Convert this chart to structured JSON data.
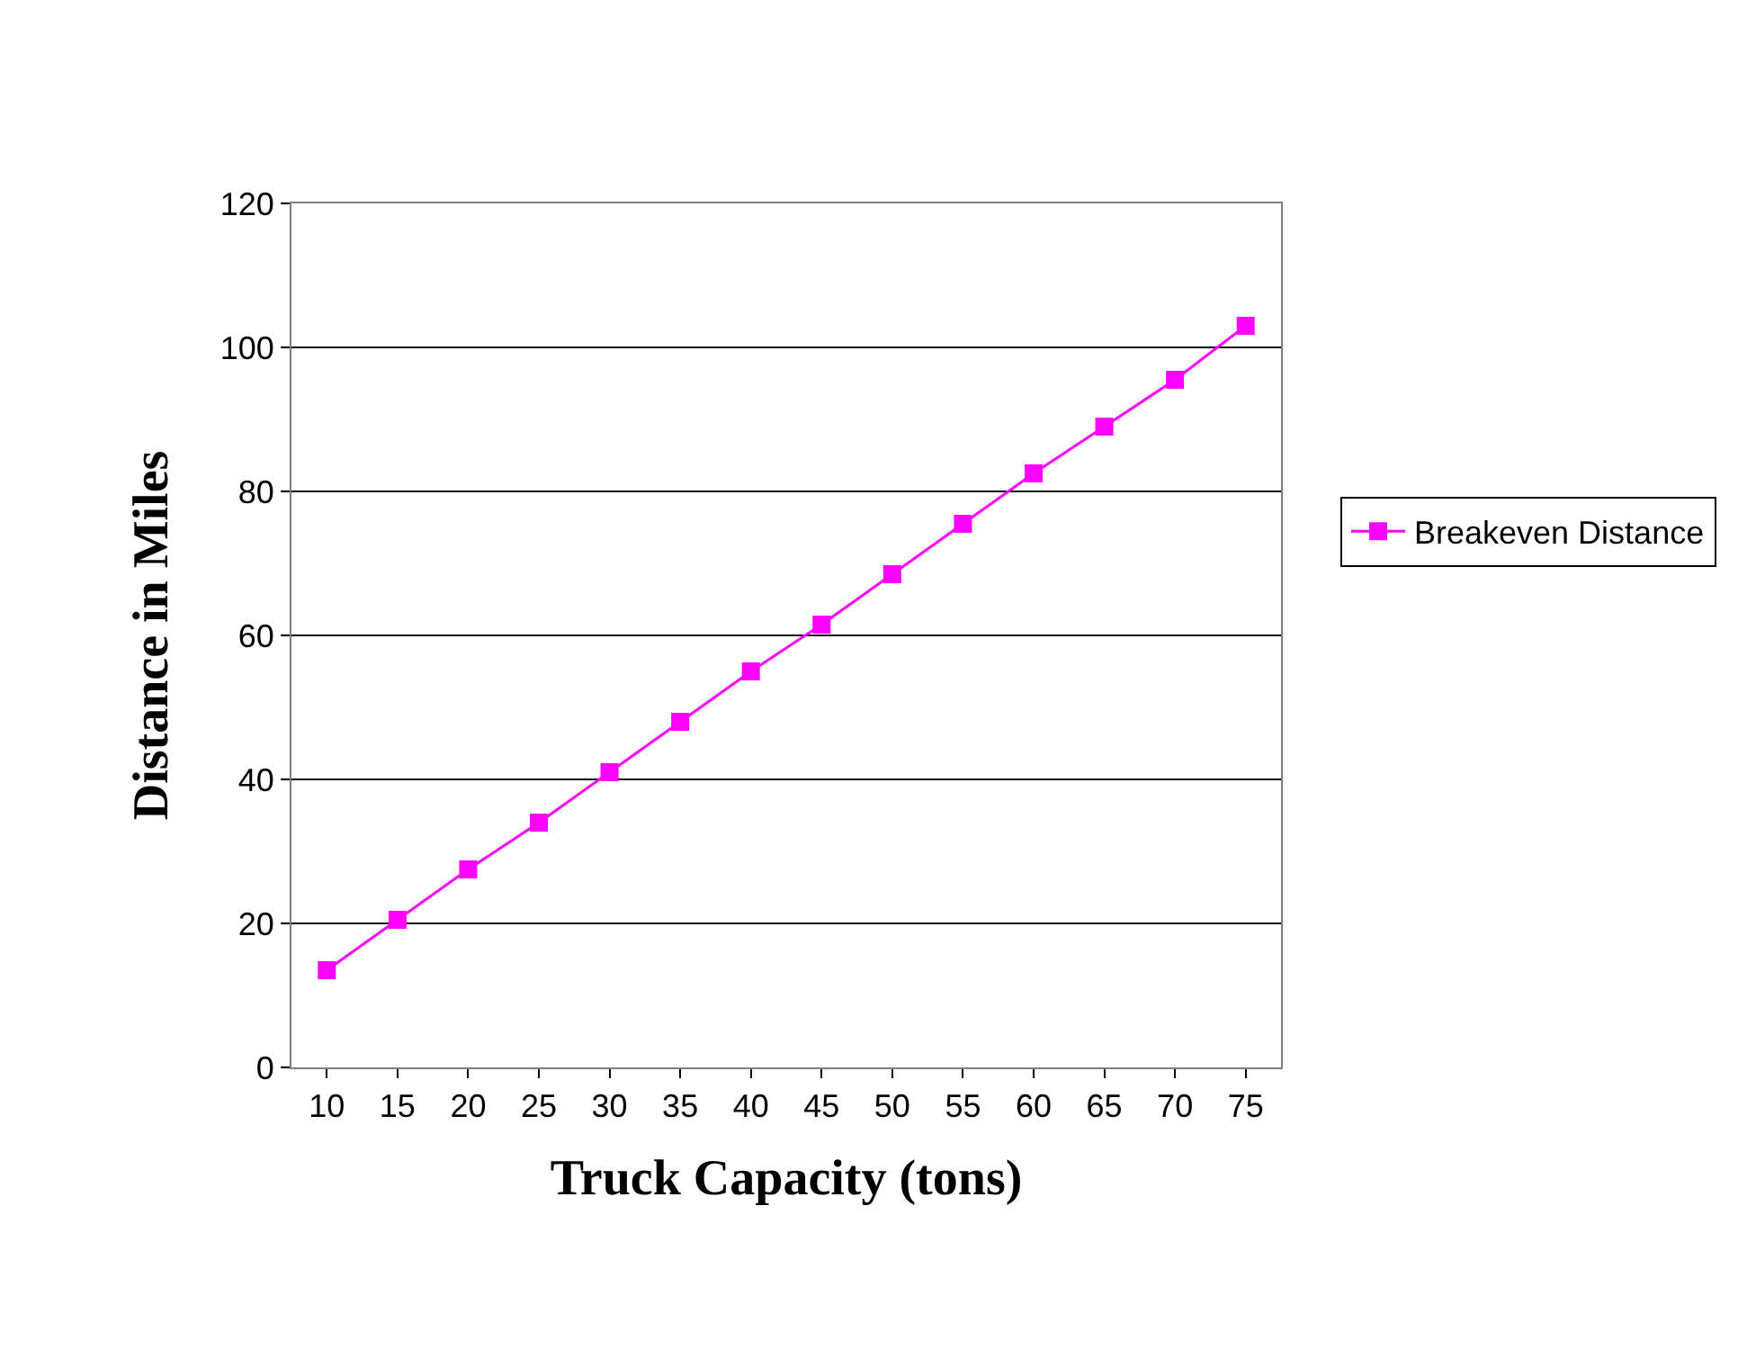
{
  "chart_data": {
    "type": "line",
    "xlabel": "Truck Capacity (tons)",
    "ylabel": "Distance in Miles",
    "categories": [
      "10",
      "15",
      "20",
      "25",
      "30",
      "35",
      "40",
      "45",
      "50",
      "55",
      "60",
      "65",
      "70",
      "75"
    ],
    "series": [
      {
        "name": "Breakeven Distance",
        "color": "#ff00ff",
        "values": [
          13.5,
          20.5,
          27.5,
          34,
          41,
          48,
          55,
          61.5,
          68.5,
          75.5,
          82.5,
          89,
          95.5,
          103
        ]
      }
    ],
    "ylim": [
      0,
      120
    ],
    "yticks": [
      0,
      20,
      40,
      60,
      80,
      100,
      120
    ],
    "grid": "y",
    "legend": "right",
    "marker": "square",
    "line_style": "solid"
  }
}
